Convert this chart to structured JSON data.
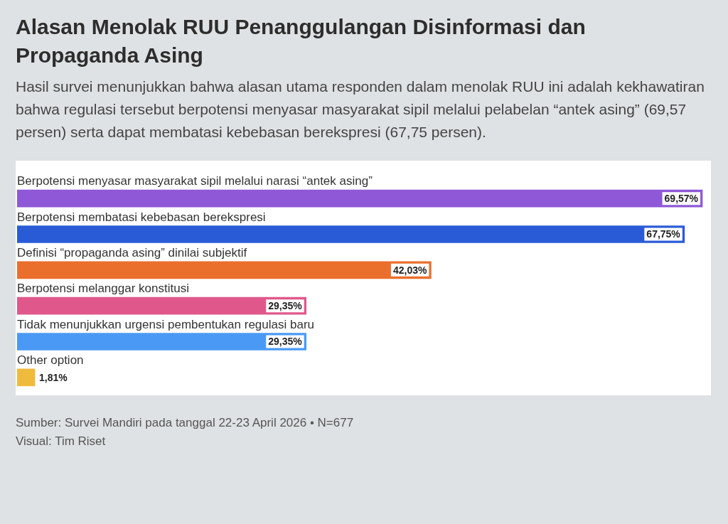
{
  "chart_data": {
    "type": "bar",
    "orientation": "horizontal",
    "title": "Alasan Menolak RUU Penanggulangan Disinformasi dan Propaganda Asing",
    "subtitle": "Hasil survei menunjukkan bahwa alasan utama responden dalam menolak RUU ini adalah kekhawatiran bahwa regulasi tersebut berpotensi menyasar masyarakat sipil melalui pelabelan “antek asing” (69,57 persen) serta dapat membatasi kebebasan berekspresi (67,75 persen).",
    "categories": [
      "Berpotensi menyasar masyarakat sipil melalui narasi “antek asing”",
      "Berpotensi membatasi kebebasan berekspresi",
      "Definisi “propaganda asing” dinilai subjektif",
      "Berpotensi melanggar konstitusi",
      "Tidak menunjukkan urgensi pembentukan regulasi baru",
      "Other option"
    ],
    "values": [
      69.57,
      67.75,
      42.03,
      29.35,
      29.35,
      1.81
    ],
    "colors": [
      "#8e58d6",
      "#2a5bd7",
      "#eb6f2c",
      "#e0588b",
      "#4a9af5",
      "#efbb3c"
    ],
    "value_labels": [
      "69,57%",
      "67,75%",
      "42,03%",
      "29,35%",
      "29,35%",
      "1,81%"
    ],
    "annotations": [
      "Sumber: Survei Mandiri pada tanggal 22-23 April 2026 • N=677",
      "Visual: Tim Riset"
    ]
  }
}
